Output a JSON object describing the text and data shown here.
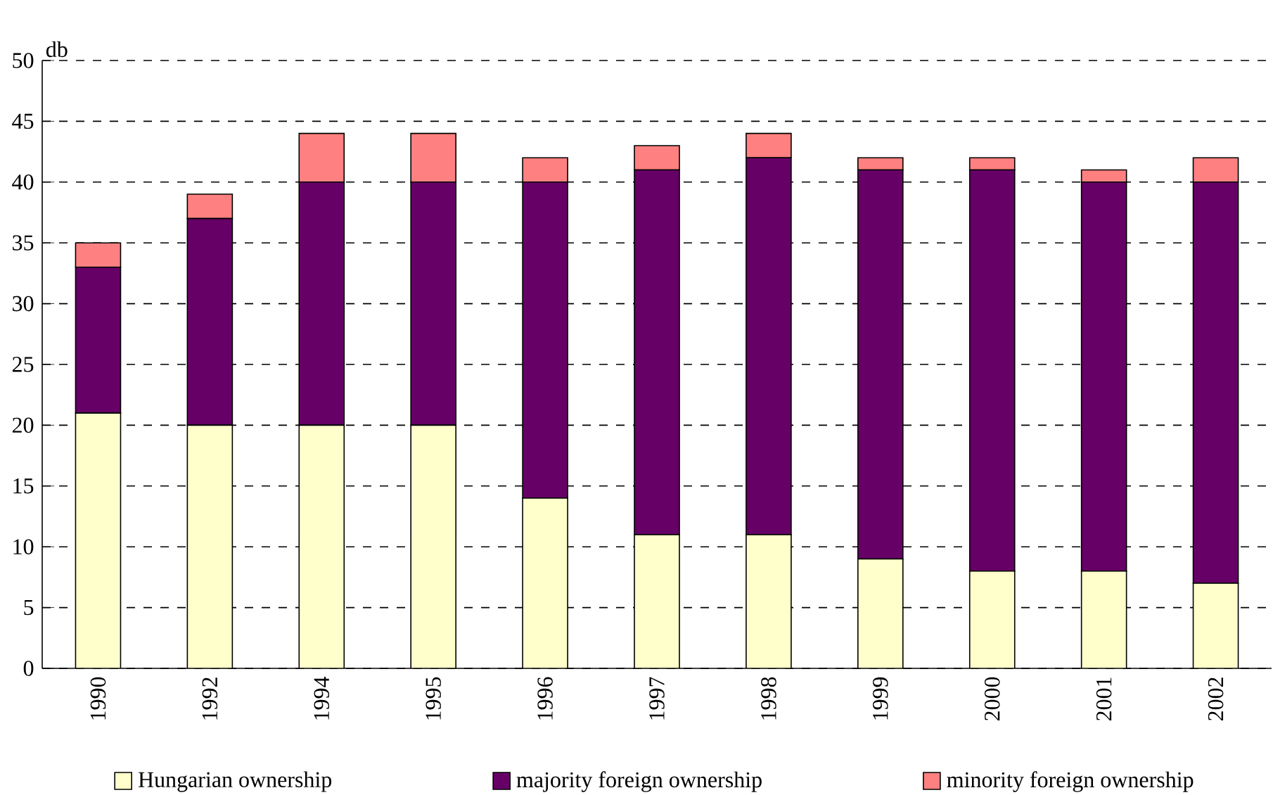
{
  "chart_data": {
    "type": "bar",
    "stacked": true,
    "ylabel": "db",
    "categories": [
      "1990",
      "1992",
      "1994",
      "1995",
      "1996",
      "1997",
      "1998",
      "1999",
      "2000",
      "2001",
      "2002"
    ],
    "series": [
      {
        "name": "Hungarian ownership",
        "color": "#ffffcc",
        "values": [
          21,
          20,
          20,
          20,
          14,
          11,
          11,
          9,
          8,
          8,
          7
        ]
      },
      {
        "name": "majority foreign ownership",
        "color": "#660066",
        "values": [
          12,
          17,
          20,
          20,
          26,
          30,
          31,
          32,
          33,
          32,
          33
        ]
      },
      {
        "name": "minority foreign ownership",
        "color": "#ff8080",
        "values": [
          2,
          2,
          4,
          4,
          2,
          2,
          2,
          1,
          1,
          1,
          2
        ]
      }
    ],
    "ylim": [
      0,
      50
    ],
    "yticks": [
      0,
      5,
      10,
      15,
      20,
      25,
      30,
      35,
      40,
      45,
      50
    ],
    "grid": "y",
    "legend": "bottom"
  }
}
